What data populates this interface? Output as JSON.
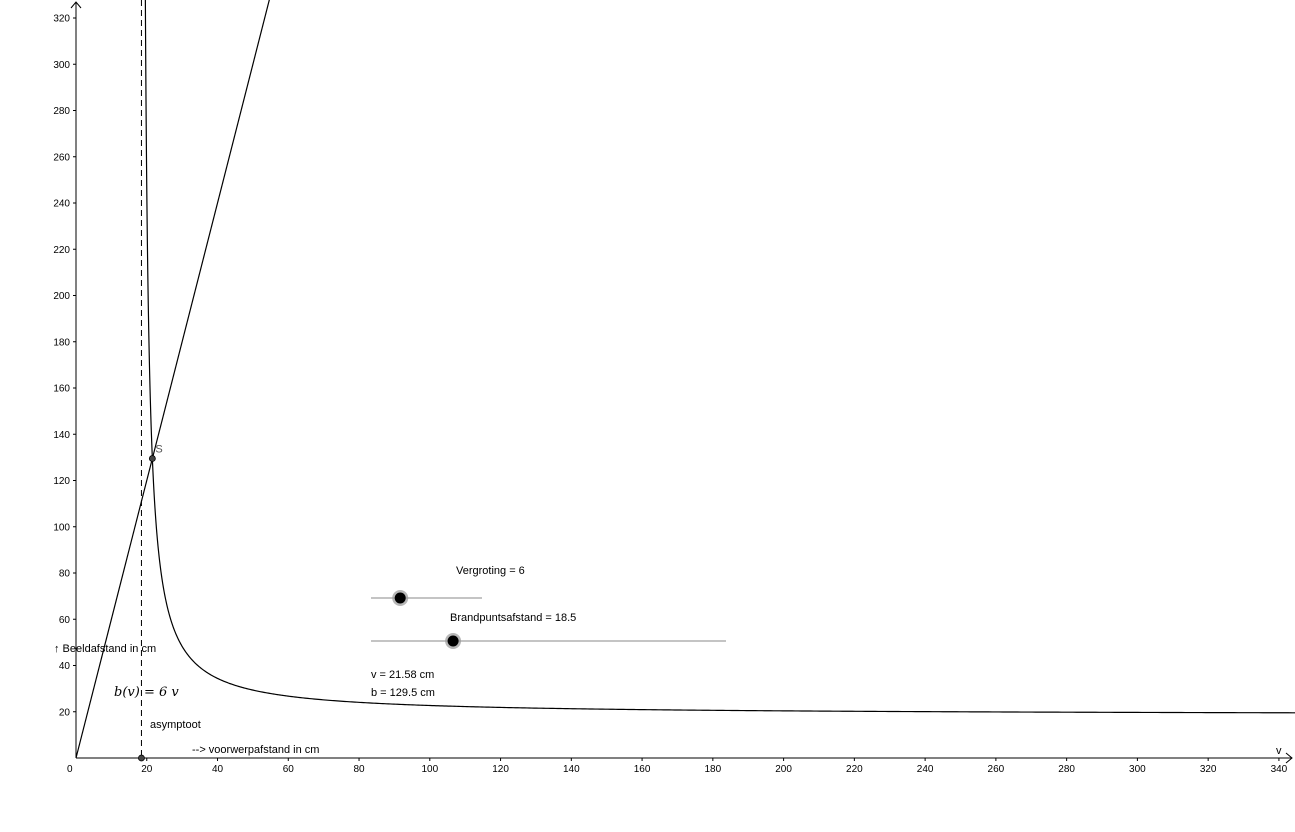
{
  "chart_data": {
    "type": "line",
    "x_axis": {
      "name": "v",
      "min": 0,
      "max": 345,
      "ticks": [
        0,
        20,
        40,
        60,
        80,
        100,
        120,
        140,
        160,
        180,
        200,
        220,
        240,
        260,
        280,
        300,
        320,
        340
      ]
    },
    "y_axis": {
      "min": 0,
      "max": 325,
      "ticks": [
        20,
        40,
        60,
        80,
        100,
        120,
        140,
        160,
        180,
        200,
        220,
        240,
        260,
        280,
        300,
        320
      ]
    },
    "grid": false,
    "series": [
      {
        "expression": "b(v) = f*v/(v - f)",
        "f": 18.5
      },
      {
        "expression": "b(v) = 6 v",
        "label": "b(v) = 6 v",
        "slope": 6
      }
    ],
    "asymptote": {
      "x": 18.5,
      "label": "asymptoot",
      "style": "dashed"
    },
    "point_S": {
      "label": "S",
      "x": 21.58,
      "y": 129.5
    },
    "axis_texts": {
      "y_caption": "↑ Beeldafstand in cm",
      "x_caption": "--> voorwerpafstand in cm"
    },
    "sliders": [
      {
        "label": "Vergroting = 6",
        "value": 6,
        "min": 1,
        "max": 20
      },
      {
        "label": "Brandpuntsafstand = 18.5",
        "value": 18.5,
        "min": 0,
        "max": 80
      }
    ],
    "readouts": [
      {
        "text": "v = 21.58 cm"
      },
      {
        "text": "b = 129.5 cm"
      }
    ]
  }
}
